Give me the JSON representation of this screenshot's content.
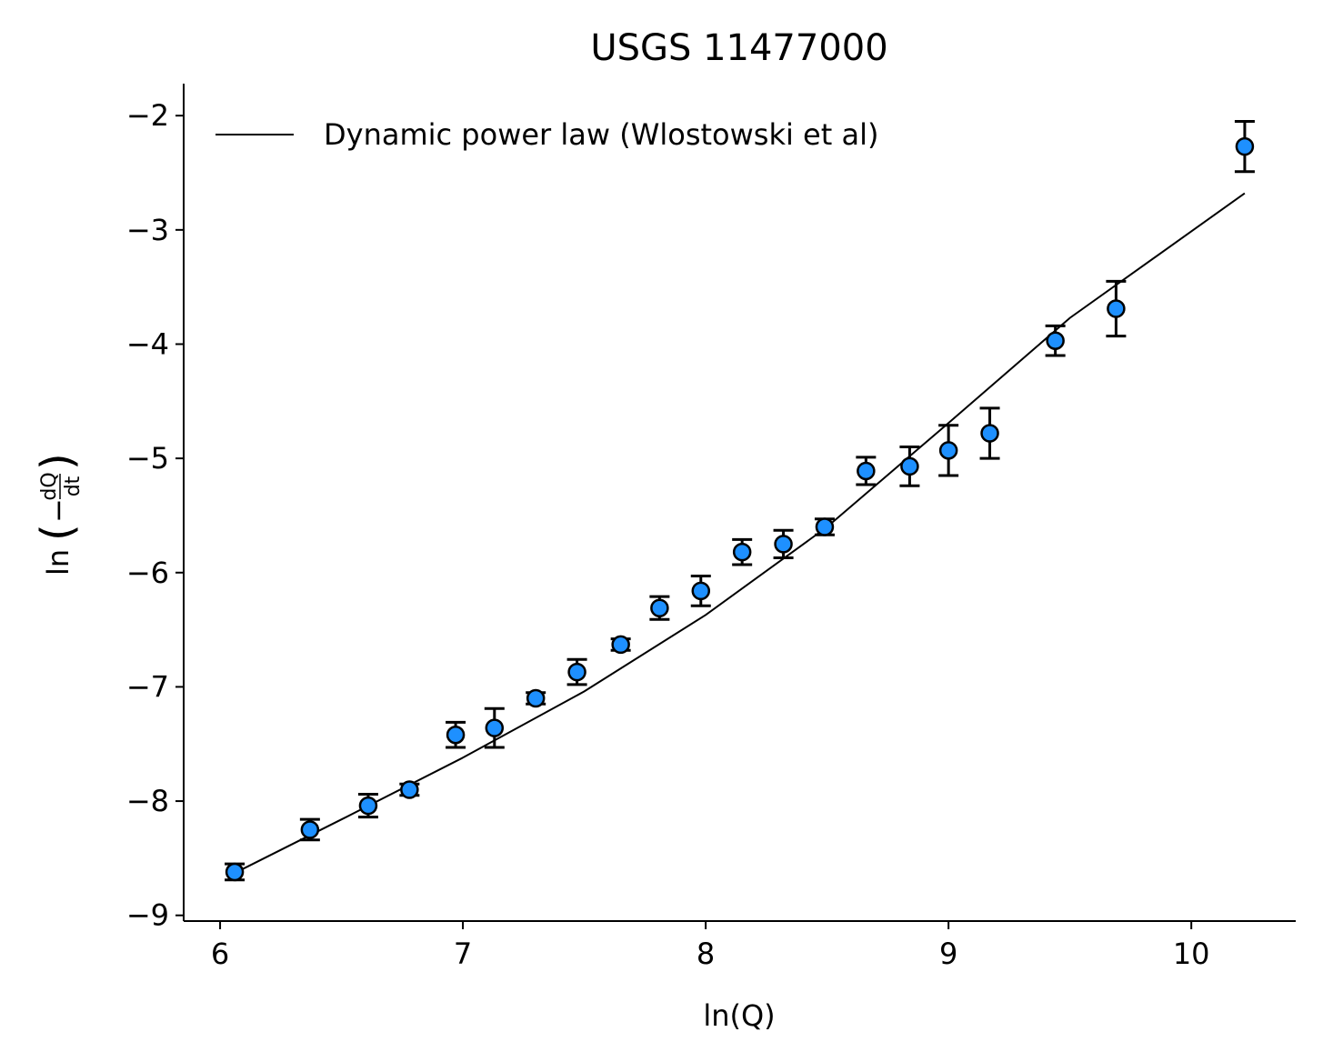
{
  "chart_data": {
    "type": "scatter",
    "title": "USGS 11477000",
    "xlabel": "ln(Q)",
    "ylabel": {
      "prefix": "ln",
      "numerator": "dQ",
      "denominator": "dt",
      "sign": "−"
    },
    "xlim": [
      5.85,
      10.43
    ],
    "ylim": [
      -9.05,
      -1.72
    ],
    "x_ticks": [
      {
        "value": 6,
        "label": "6"
      },
      {
        "value": 7,
        "label": "7"
      },
      {
        "value": 8,
        "label": "8"
      },
      {
        "value": 9,
        "label": "9"
      },
      {
        "value": 10,
        "label": "10"
      }
    ],
    "y_ticks": [
      {
        "value": -9,
        "label": "−9"
      },
      {
        "value": -8,
        "label": "−8"
      },
      {
        "value": -7,
        "label": "−7"
      },
      {
        "value": -6,
        "label": "−6"
      },
      {
        "value": -5,
        "label": "−5"
      },
      {
        "value": -4,
        "label": "−4"
      },
      {
        "value": -3,
        "label": "−3"
      },
      {
        "value": -2,
        "label": "−2"
      }
    ],
    "grid": false,
    "legend": {
      "position": "top-left",
      "entries": [
        "Dynamic power law (Wlostowski et al)"
      ]
    },
    "series": [
      {
        "name": "",
        "kind": "points-with-errorbars",
        "color": "#1e90ff",
        "edge_color": "#000000",
        "points": [
          {
            "x": 6.06,
            "y": -8.62,
            "err": 0.07
          },
          {
            "x": 6.37,
            "y": -8.25,
            "err": 0.09
          },
          {
            "x": 6.61,
            "y": -8.04,
            "err": 0.1
          },
          {
            "x": 6.78,
            "y": -7.9,
            "err": 0.05
          },
          {
            "x": 6.97,
            "y": -7.42,
            "err": 0.11
          },
          {
            "x": 7.13,
            "y": -7.36,
            "err": 0.17
          },
          {
            "x": 7.3,
            "y": -7.1,
            "err": 0.05
          },
          {
            "x": 7.47,
            "y": -6.87,
            "err": 0.11
          },
          {
            "x": 7.65,
            "y": -6.63,
            "err": 0.05
          },
          {
            "x": 7.81,
            "y": -6.31,
            "err": 0.1
          },
          {
            "x": 7.98,
            "y": -6.16,
            "err": 0.13
          },
          {
            "x": 8.15,
            "y": -5.82,
            "err": 0.11
          },
          {
            "x": 8.32,
            "y": -5.75,
            "err": 0.12
          },
          {
            "x": 8.49,
            "y": -5.6,
            "err": 0.07
          },
          {
            "x": 8.66,
            "y": -5.11,
            "err": 0.12
          },
          {
            "x": 8.84,
            "y": -5.07,
            "err": 0.17
          },
          {
            "x": 9.0,
            "y": -4.93,
            "err": 0.22
          },
          {
            "x": 9.17,
            "y": -4.78,
            "err": 0.22
          },
          {
            "x": 9.44,
            "y": -3.97,
            "err": 0.13
          },
          {
            "x": 9.69,
            "y": -3.69,
            "err": 0.24
          },
          {
            "x": 10.22,
            "y": -2.27,
            "err": 0.22
          }
        ]
      },
      {
        "name": "Dynamic power law (Wlostowski et al)",
        "kind": "line",
        "color": "#000000",
        "points": [
          {
            "x": 6.06,
            "y": -8.63
          },
          {
            "x": 6.5,
            "y": -8.16
          },
          {
            "x": 7.0,
            "y": -7.62
          },
          {
            "x": 7.5,
            "y": -7.04
          },
          {
            "x": 8.0,
            "y": -6.37
          },
          {
            "x": 8.5,
            "y": -5.6
          },
          {
            "x": 9.0,
            "y": -4.69
          },
          {
            "x": 9.5,
            "y": -3.77
          },
          {
            "x": 10.22,
            "y": -2.68
          }
        ]
      }
    ]
  }
}
